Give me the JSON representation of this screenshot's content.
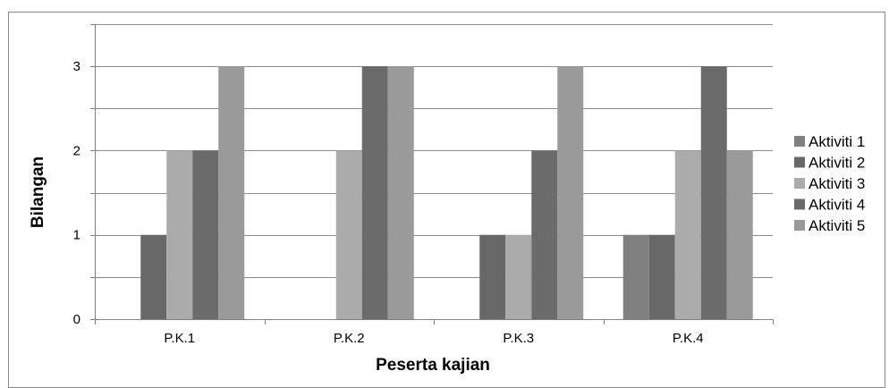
{
  "chart_data": {
    "type": "bar",
    "xlabel": "Peserta kajian",
    "ylabel": "Bilangan",
    "categories": [
      "P.K.1",
      "P.K.2",
      "P.K.3",
      "P.K.4"
    ],
    "series": [
      {
        "name": "Aktiviti 1",
        "values": [
          0,
          0,
          0,
          1
        ],
        "color": "#808080"
      },
      {
        "name": "Aktiviti 2",
        "values": [
          1,
          0,
          1,
          1
        ],
        "color": "#686868"
      },
      {
        "name": "Aktiviti 3",
        "values": [
          2,
          2,
          1,
          2
        ],
        "color": "#ababab"
      },
      {
        "name": "Aktiviti 4",
        "values": [
          2,
          3,
          2,
          3
        ],
        "color": "#6b6b6b"
      },
      {
        "name": "Aktiviti 5",
        "values": [
          3,
          3,
          3,
          2
        ],
        "color": "#9a9a9a"
      }
    ],
    "ylim": [
      0,
      3.5
    ],
    "yticks": [
      0,
      1,
      2,
      3
    ],
    "grid": true,
    "legend": "right"
  }
}
